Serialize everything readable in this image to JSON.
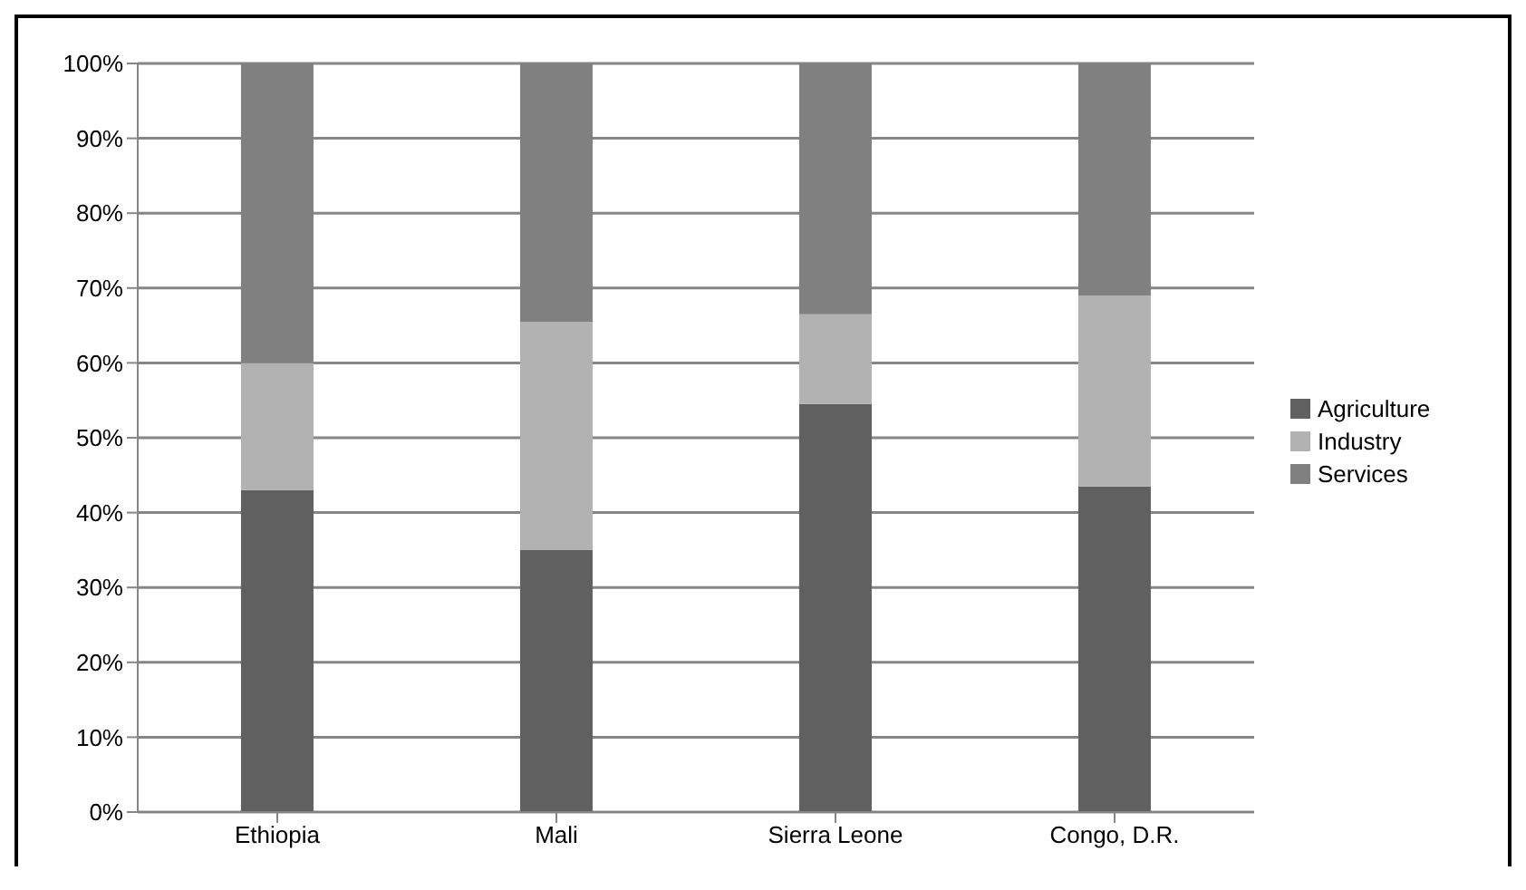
{
  "chart_data": {
    "type": "bar",
    "stacked": true,
    "categories": [
      "Ethiopia",
      "Mali",
      "Sierra Leone",
      "Congo, D.R."
    ],
    "series": [
      {
        "name": "Agriculture",
        "color": "#606060",
        "values": [
          43,
          35,
          54.5,
          43.5
        ]
      },
      {
        "name": "Industry",
        "color": "#b2b2b2",
        "values": [
          17,
          30.5,
          12,
          25.5
        ]
      },
      {
        "name": "Services",
        "color": "#808080",
        "values": [
          40,
          34.5,
          33.5,
          31
        ]
      }
    ],
    "ylim": [
      0,
      100
    ],
    "yticks": [
      {
        "value": 0,
        "label": "0%"
      },
      {
        "value": 10,
        "label": "10%"
      },
      {
        "value": 20,
        "label": "20%"
      },
      {
        "value": 30,
        "label": "30%"
      },
      {
        "value": 40,
        "label": "40%"
      },
      {
        "value": 50,
        "label": "50%"
      },
      {
        "value": 60,
        "label": "60%"
      },
      {
        "value": 70,
        "label": "70%"
      },
      {
        "value": 80,
        "label": "80%"
      },
      {
        "value": 90,
        "label": "90%"
      },
      {
        "value": 100,
        "label": "100%"
      }
    ],
    "grid": "y",
    "legend": "right"
  }
}
